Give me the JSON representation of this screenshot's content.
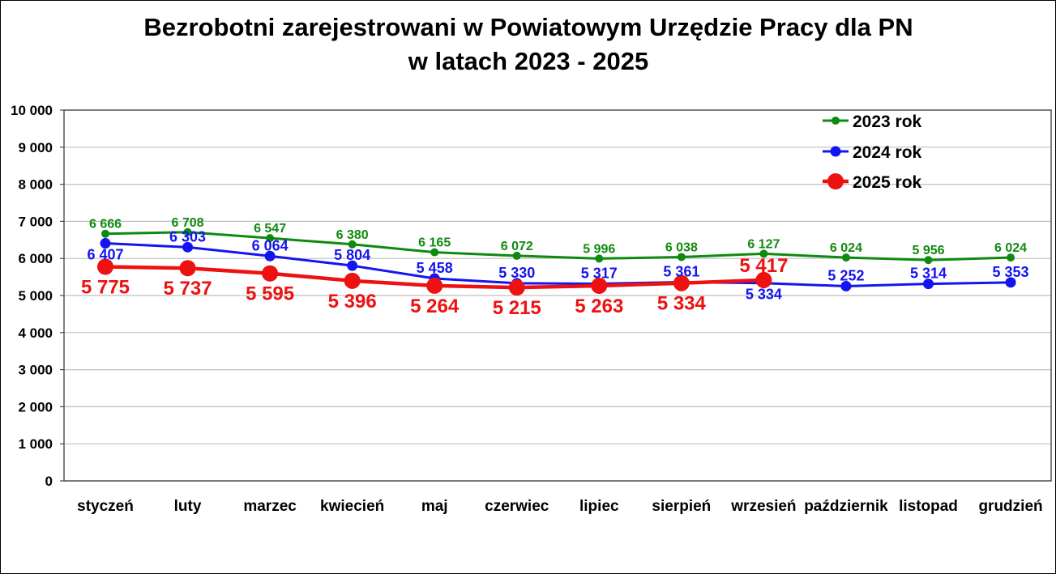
{
  "chart_data": {
    "type": "line",
    "title_line1": "Bezrobotni zarejestrowani w Powiatowym Urzędzie Pracy dla PN",
    "title_line2": "w latach 2023 - 2025",
    "categories": [
      "styczeń",
      "luty",
      "marzec",
      "kwiecień",
      "maj",
      "czerwiec",
      "lipiec",
      "sierpień",
      "wrzesień",
      "październik",
      "listopad",
      "grudzień"
    ],
    "series": [
      {
        "name": "2023 rok",
        "color": "#0E8A0E",
        "values": [
          6666,
          6708,
          6547,
          6380,
          6165,
          6072,
          5996,
          6038,
          6127,
          6024,
          5956,
          6024
        ],
        "label_sides": [
          "above",
          "above",
          "above",
          "above",
          "above",
          "above",
          "above",
          "above",
          "above",
          "above",
          "above",
          "above"
        ]
      },
      {
        "name": "2024 rok",
        "color": "#1414F0",
        "values": [
          6407,
          6303,
          6064,
          5804,
          5458,
          5330,
          5317,
          5361,
          5334,
          5252,
          5314,
          5353
        ],
        "label_sides": [
          "below",
          "above",
          "above",
          "above",
          "above",
          "above",
          "above",
          "above",
          "below",
          "above",
          "above",
          "above"
        ]
      },
      {
        "name": "2025 rok",
        "color": "#EE1111",
        "values": [
          5775,
          5737,
          5595,
          5396,
          5264,
          5215,
          5263,
          5334,
          5417
        ],
        "label_sides": [
          "below",
          "below",
          "below",
          "below",
          "below",
          "below",
          "below",
          "below",
          "above"
        ]
      }
    ],
    "y_axis": {
      "min": 0,
      "max": 10000,
      "step": 1000,
      "tick_labels": [
        "0",
        "1 000",
        "2 000",
        "3 000",
        "4 000",
        "5 000",
        "6 000",
        "7 000",
        "8 000",
        "9 000",
        "10 000"
      ]
    },
    "legend_position": "top-right",
    "grid": true,
    "number_format": "space-thousands"
  }
}
